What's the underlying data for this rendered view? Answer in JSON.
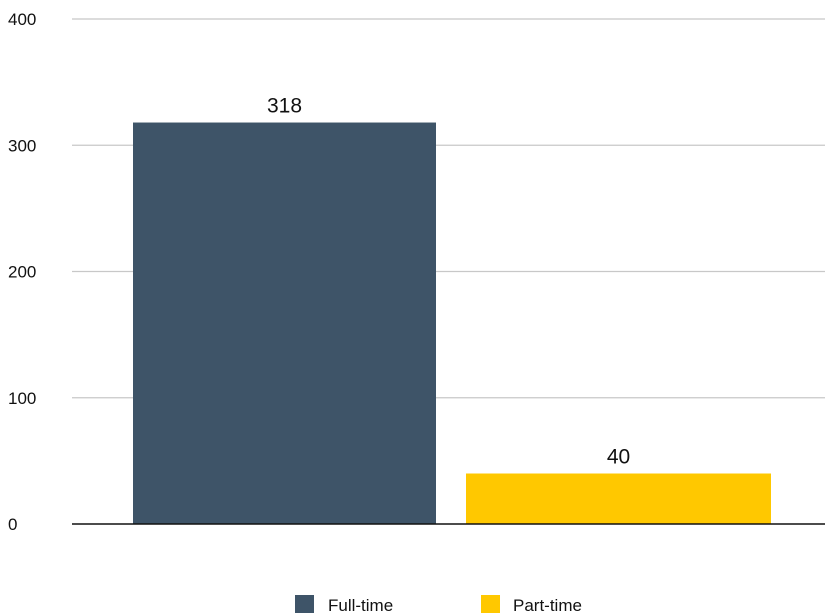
{
  "chart_data": {
    "type": "bar",
    "categories": [
      "Full-time",
      "Part-time"
    ],
    "values": [
      318,
      40
    ],
    "colors": [
      "#3e5468",
      "#ffc800"
    ],
    "title": "",
    "xlabel": "",
    "ylabel": "",
    "ylim": [
      0,
      400
    ],
    "yticks": [
      0,
      100,
      200,
      300,
      400
    ],
    "grid": true,
    "data_labels": [
      "318",
      "40"
    ],
    "legend": {
      "position": "bottom",
      "entries": [
        "Full-time",
        "Part-time"
      ]
    }
  }
}
